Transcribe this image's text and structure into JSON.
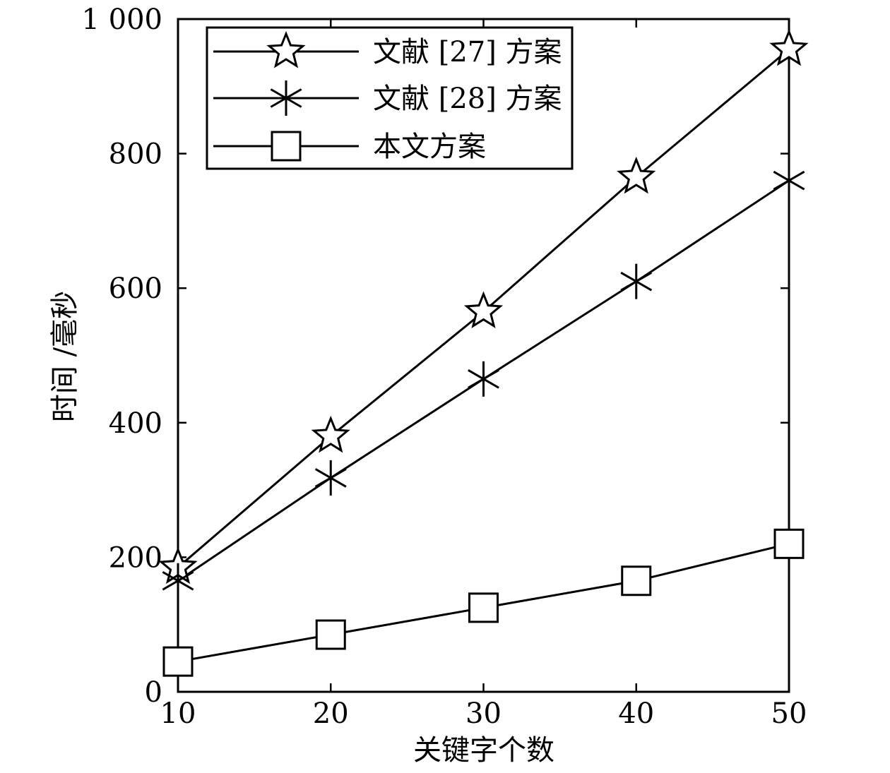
{
  "chart_data": {
    "type": "line",
    "x": [
      10,
      20,
      30,
      40,
      50
    ],
    "series": [
      {
        "name": "文献 [27] 方案",
        "marker": "star",
        "values": [
          185,
          380,
          565,
          765,
          955
        ]
      },
      {
        "name": "文献 [28] 方案",
        "marker": "asterisk",
        "values": [
          165,
          318,
          465,
          610,
          760
        ]
      },
      {
        "name": "本文方案",
        "marker": "square",
        "values": [
          45,
          85,
          125,
          165,
          220
        ]
      }
    ],
    "xlabel": "关键字个数",
    "ylabel": "时间 /毫秒",
    "xlim": [
      10,
      50
    ],
    "ylim": [
      0,
      1000
    ],
    "xticks": [
      "10",
      "20",
      "30",
      "40",
      "50"
    ],
    "yticks": [
      "0",
      "200",
      "400",
      "600",
      "800",
      "1 000"
    ],
    "grid": false,
    "legend_position": "top-left",
    "colors": {
      "line": "#000000",
      "background": "#ffffff"
    }
  }
}
